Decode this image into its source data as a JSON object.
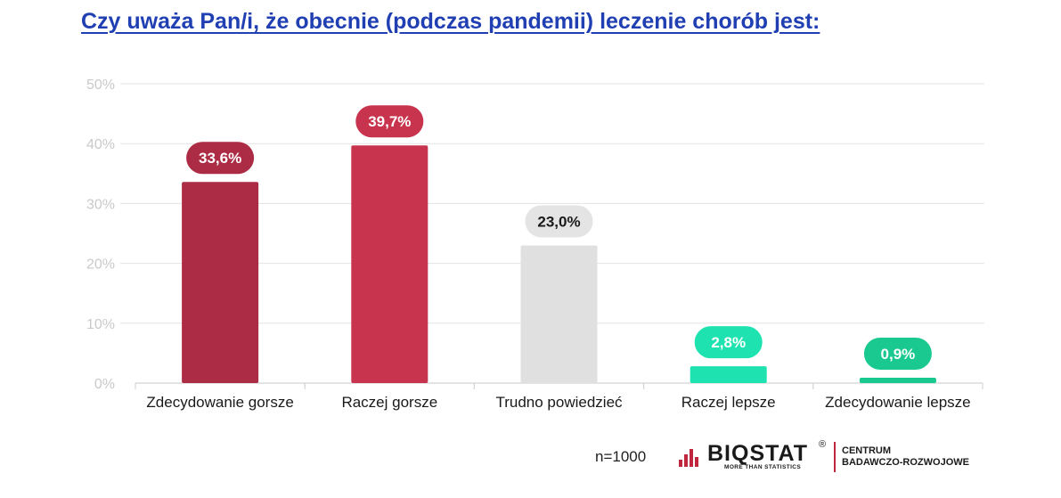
{
  "title": "Czy uważa Pan/i, że obecnie (podczas pandemii) leczenie chorób jest:",
  "footer": {
    "n_label": "n=1000"
  },
  "logo": {
    "name": "BIQSTAT",
    "registered": "®",
    "tagline": "MORE THAN STATISTICS",
    "unit_line1": "CENTRUM",
    "unit_line2": "BADAWCZO-ROZWOJOWE",
    "icon": "bar-chart-icon",
    "accent_color": "#c0263e"
  },
  "chart_data": {
    "type": "bar",
    "title": "Czy uważa Pan/i, że obecnie (podczas pandemii) leczenie chorób jest:",
    "xlabel": "",
    "ylabel": "",
    "ylim": [
      0,
      50
    ],
    "yticks": [
      0,
      10,
      20,
      30,
      40,
      50
    ],
    "ytick_labels": [
      "0%",
      "10%",
      "20%",
      "30%",
      "40%",
      "50%"
    ],
    "grid": true,
    "legend": "none",
    "categories": [
      "Zdecydowanie gorsze",
      "Raczej gorsze",
      "Trudno powiedzieć",
      "Raczej lepsze",
      "Zdecydowanie lepsze"
    ],
    "values": [
      33.6,
      39.7,
      23.0,
      2.8,
      0.9
    ],
    "data_labels": [
      "33,6%",
      "39,7%",
      "23,0%",
      "2,8%",
      "0,9%"
    ],
    "colors": [
      "#ac2c45",
      "#c8344d",
      "#e0e0e0",
      "#1ee3b0",
      "#19c98f"
    ],
    "label_bg_colors": [
      "#ac2c45",
      "#c8344d",
      "#e4e4e4",
      "#1ee3b0",
      "#19c98f"
    ],
    "label_text_colors": [
      "#ffffff",
      "#ffffff",
      "#1a1a1a",
      "#ffffff",
      "#ffffff"
    ]
  }
}
